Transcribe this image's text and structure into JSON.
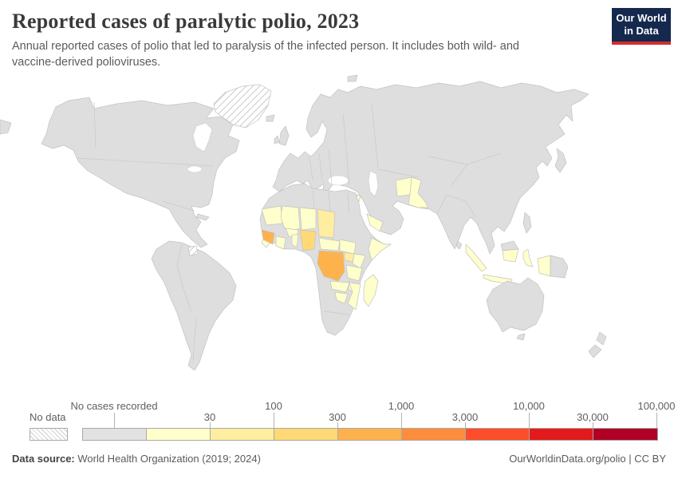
{
  "header": {
    "title": "Reported cases of paralytic polio, 2023",
    "subtitle": "Annual reported cases of polio that led to paralysis of the infected person. It includes both wild- and vaccine-derived polioviruses."
  },
  "logo": {
    "line1": "Our World",
    "line2": "in Data",
    "bg_color": "#15294e",
    "stripe_color": "#d12e2e"
  },
  "legend": {
    "no_data_label": "No data",
    "no_cases_label": "No cases recorded",
    "no_cases_color": "#e2e2e2",
    "bins": [
      {
        "color": "#e2e2e2",
        "label": null,
        "row": null
      },
      {
        "color": "#ffffcc",
        "label": "30",
        "row": "bottom"
      },
      {
        "color": "#ffeda0",
        "label": "100",
        "row": "top"
      },
      {
        "color": "#fed976",
        "label": "300",
        "row": "bottom"
      },
      {
        "color": "#feb24c",
        "label": "1,000",
        "row": "top"
      },
      {
        "color": "#fd8d3c",
        "label": "3,000",
        "row": "bottom"
      },
      {
        "color": "#fc4e2a",
        "label": "10,000",
        "row": "top"
      },
      {
        "color": "#e31a1c",
        "label": "30,000",
        "row": "bottom"
      },
      {
        "color": "#b10026",
        "label": "100,000",
        "row": "top"
      }
    ]
  },
  "footer": {
    "datasource_label": "Data source:",
    "datasource_value": " World Health Organization (2019; 2024)",
    "link_text": "OurWorldinData.org/polio",
    "license_text": " | CC BY"
  },
  "map": {
    "land_color": "#dedede",
    "border_color": "#c2c2c2",
    "country_fills": {
      "greenland": "hatch",
      "french-guiana": "hatch",
      "mauritania": "#ffffcc",
      "mali": "#ffffcc",
      "niger": "#ffffcc",
      "burkina-faso": "#ffffcc",
      "guinea": "#feb24c",
      "sierra-leone": "#ffffcc",
      "cote-divoire": "#ffffcc",
      "benin": "#ffffcc",
      "nigeria": "#fed976",
      "chad": "#ffeda0",
      "central-african-republic": "#ffffcc",
      "south-sudan": "#ffffcc",
      "somalia": "#ffffcc",
      "uganda": "#ffeda0",
      "kenya": "#ffffcc",
      "drc": "#feb24c",
      "tanzania": "#ffffcc",
      "zambia": "#ffffcc",
      "malawi": "#ffffcc",
      "mozambique": "#ffffcc",
      "zimbabwe": "#ffffcc",
      "madagascar": "#ffffcc",
      "yemen": "#ffffcc",
      "israel": "#ffffcc",
      "afghanistan": "#ffffcc",
      "pakistan": "#ffffcc",
      "indonesia": "#ffffcc",
      "west-papua": "#ffffcc"
    }
  },
  "chart_data": {
    "type": "heatmap",
    "subtype": "world-choropleth",
    "title": "Reported cases of paralytic polio, 2023",
    "legend_bins": [
      "No data",
      "No cases recorded",
      "0–30",
      "30–100",
      "100–300",
      "300–1,000",
      "1,000–3,000",
      "3,000–10,000",
      "10,000–30,000",
      "30,000–100,000"
    ],
    "bin_colors": [
      "hatched",
      "#e2e2e2",
      "#ffffcc",
      "#ffeda0",
      "#fed976",
      "#feb24c",
      "#fd8d3c",
      "#fc4e2a",
      "#e31a1c",
      "#b10026"
    ],
    "default_bin": "No cases recorded",
    "no_data_regions": [
      "Greenland",
      "French Guiana"
    ],
    "countries_highlighted": [
      {
        "country": "Mauritania",
        "bin": "0–30"
      },
      {
        "country": "Mali",
        "bin": "0–30"
      },
      {
        "country": "Niger",
        "bin": "0–30"
      },
      {
        "country": "Burkina Faso",
        "bin": "0–30"
      },
      {
        "country": "Sierra Leone",
        "bin": "0–30"
      },
      {
        "country": "Côte d'Ivoire",
        "bin": "0–30"
      },
      {
        "country": "Benin",
        "bin": "0–30"
      },
      {
        "country": "Central African Republic",
        "bin": "0–30"
      },
      {
        "country": "South Sudan",
        "bin": "0–30"
      },
      {
        "country": "Somalia",
        "bin": "0–30"
      },
      {
        "country": "Kenya",
        "bin": "0–30"
      },
      {
        "country": "Tanzania",
        "bin": "0–30"
      },
      {
        "country": "Zambia",
        "bin": "0–30"
      },
      {
        "country": "Malawi",
        "bin": "0–30"
      },
      {
        "country": "Mozambique",
        "bin": "0–30"
      },
      {
        "country": "Zimbabwe",
        "bin": "0–30"
      },
      {
        "country": "Madagascar",
        "bin": "0–30"
      },
      {
        "country": "Yemen",
        "bin": "0–30"
      },
      {
        "country": "Israel",
        "bin": "0–30"
      },
      {
        "country": "Afghanistan",
        "bin": "0–30"
      },
      {
        "country": "Pakistan",
        "bin": "0–30"
      },
      {
        "country": "Indonesia",
        "bin": "0–30"
      },
      {
        "country": "Uganda",
        "bin": "30–100"
      },
      {
        "country": "Chad",
        "bin": "30–100"
      },
      {
        "country": "Nigeria",
        "bin": "100–300"
      },
      {
        "country": "Guinea",
        "bin": "300–1,000"
      },
      {
        "country": "Democratic Republic of Congo",
        "bin": "300–1,000"
      }
    ]
  }
}
